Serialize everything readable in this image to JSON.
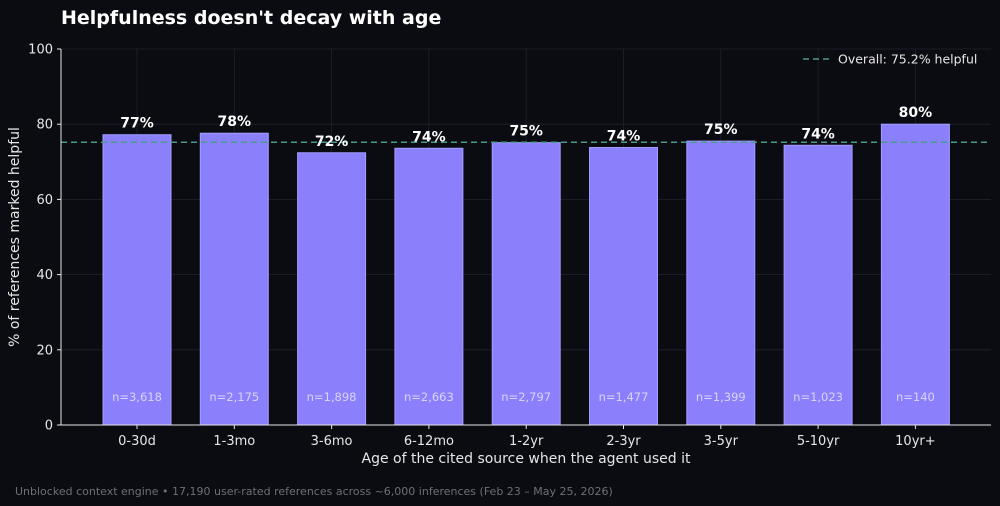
{
  "chart_data": {
    "type": "bar",
    "title": "Helpfulness doesn't decay with age",
    "xlabel": "Age of the cited source when the agent used it",
    "ylabel": "% of references marked helpful",
    "ylim": [
      0,
      100
    ],
    "yticks": [
      "0",
      "20",
      "40",
      "60",
      "80",
      "100"
    ],
    "yticks_values": [
      0,
      20,
      40,
      60,
      80,
      100
    ],
    "categories": [
      "0-30d",
      "1-3mo",
      "3-6mo",
      "6-12mo",
      "1-2yr",
      "2-3yr",
      "3-5yr",
      "5-10yr",
      "10yr+"
    ],
    "values": [
      77.2,
      77.6,
      72.4,
      73.6,
      75.1,
      73.8,
      75.5,
      74.4,
      80.0
    ],
    "value_labels": [
      "77%",
      "78%",
      "72%",
      "74%",
      "75%",
      "74%",
      "75%",
      "74%",
      "80%"
    ],
    "n_labels": [
      "n=3,618",
      "n=2,175",
      "n=1,898",
      "n=2,663",
      "n=2,797",
      "n=1,477",
      "n=1,399",
      "n=1,023",
      "n=140"
    ],
    "reference_line": {
      "value": 75.2,
      "label": "Overall: 75.2% helpful",
      "style": "dashed"
    },
    "legend_position": "top-right",
    "grid": true,
    "colors": {
      "background": "#0b0c11",
      "bar": "#8b80fb",
      "bar_edge": "#a49bff",
      "reference_line": "#4a9a8a",
      "grid": "#1f2230",
      "axis": "#e6e6e6"
    },
    "footer": "Unblocked context engine • 17,190 user-rated references across ~6,000 inferences (Feb 23 – May 25, 2026)"
  }
}
